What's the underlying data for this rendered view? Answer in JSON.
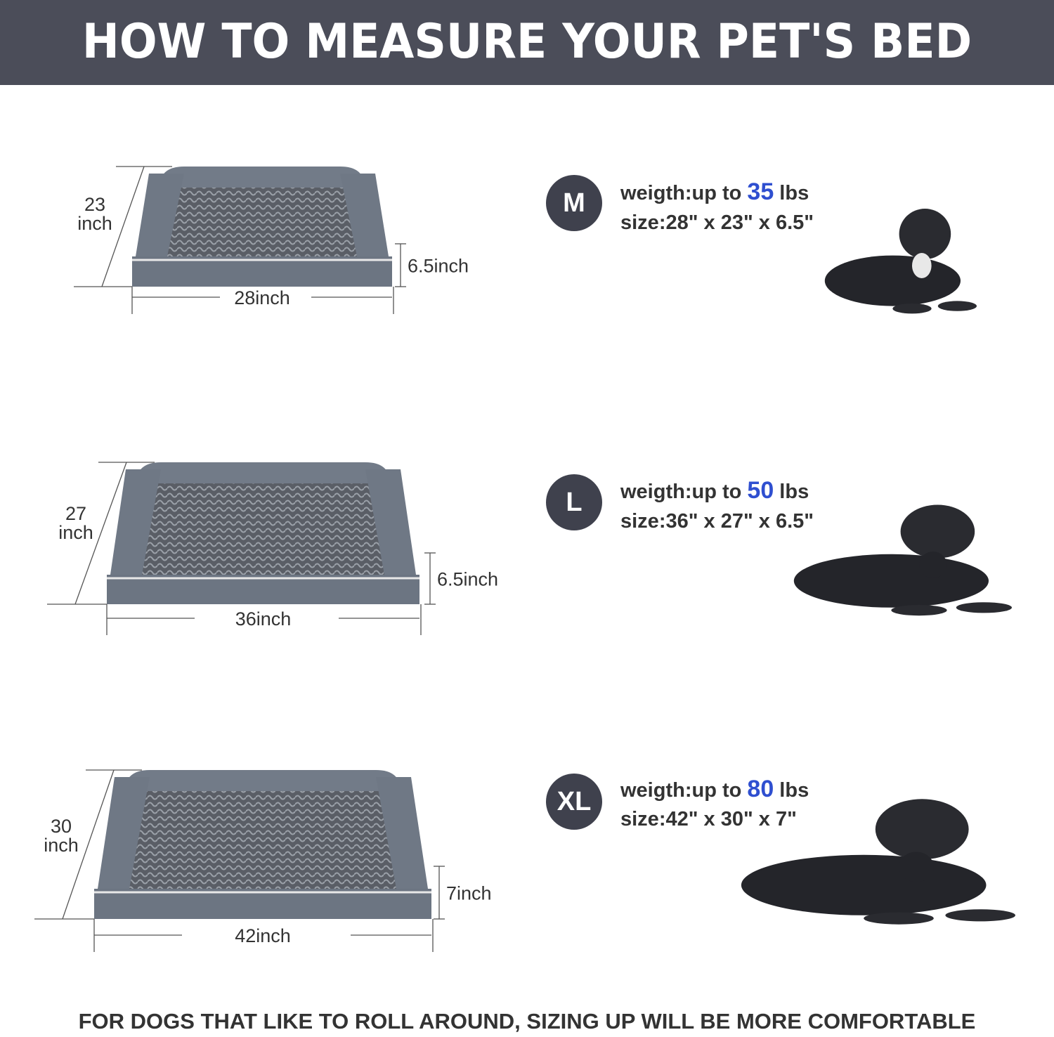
{
  "title": "HOW TO MEASURE YOUR PET'S BED",
  "sizes": [
    {
      "label": "M",
      "weight_prefix": "weigth:up to ",
      "weight_value": "35",
      "weight_suffix": " lbs",
      "size": "size:28\" x 23\" x 6.5\"",
      "width_label": "28inch",
      "height_label": "6.5inch",
      "depth_value": "23",
      "depth_unit": "inch",
      "dog": "french-bulldog"
    },
    {
      "label": "L",
      "weight_prefix": "weigth:up to ",
      "weight_value": "50",
      "weight_suffix": " lbs",
      "size": "size:36\" x 27\" x 6.5\"",
      "width_label": "36inch",
      "height_label": "6.5inch",
      "depth_value": "27",
      "depth_unit": "inch",
      "dog": "cocker-spaniel"
    },
    {
      "label": "XL",
      "weight_prefix": "weigth:up to ",
      "weight_value": "80",
      "weight_suffix": " lbs",
      "size": "size:42\" x 30\" x 7\"",
      "width_label": "42inch",
      "height_label": "7inch",
      "depth_value": "30",
      "depth_unit": "inch",
      "dog": "labrador"
    }
  ],
  "footer": "FOR DOGS THAT LIKE TO ROLL AROUND, SIZING UP WILL BE MORE COMFORTABLE",
  "colors": {
    "header": "#4b4d59",
    "badge": "#3f414d",
    "highlight": "#2f4fd0",
    "bed": "#6f7885"
  }
}
